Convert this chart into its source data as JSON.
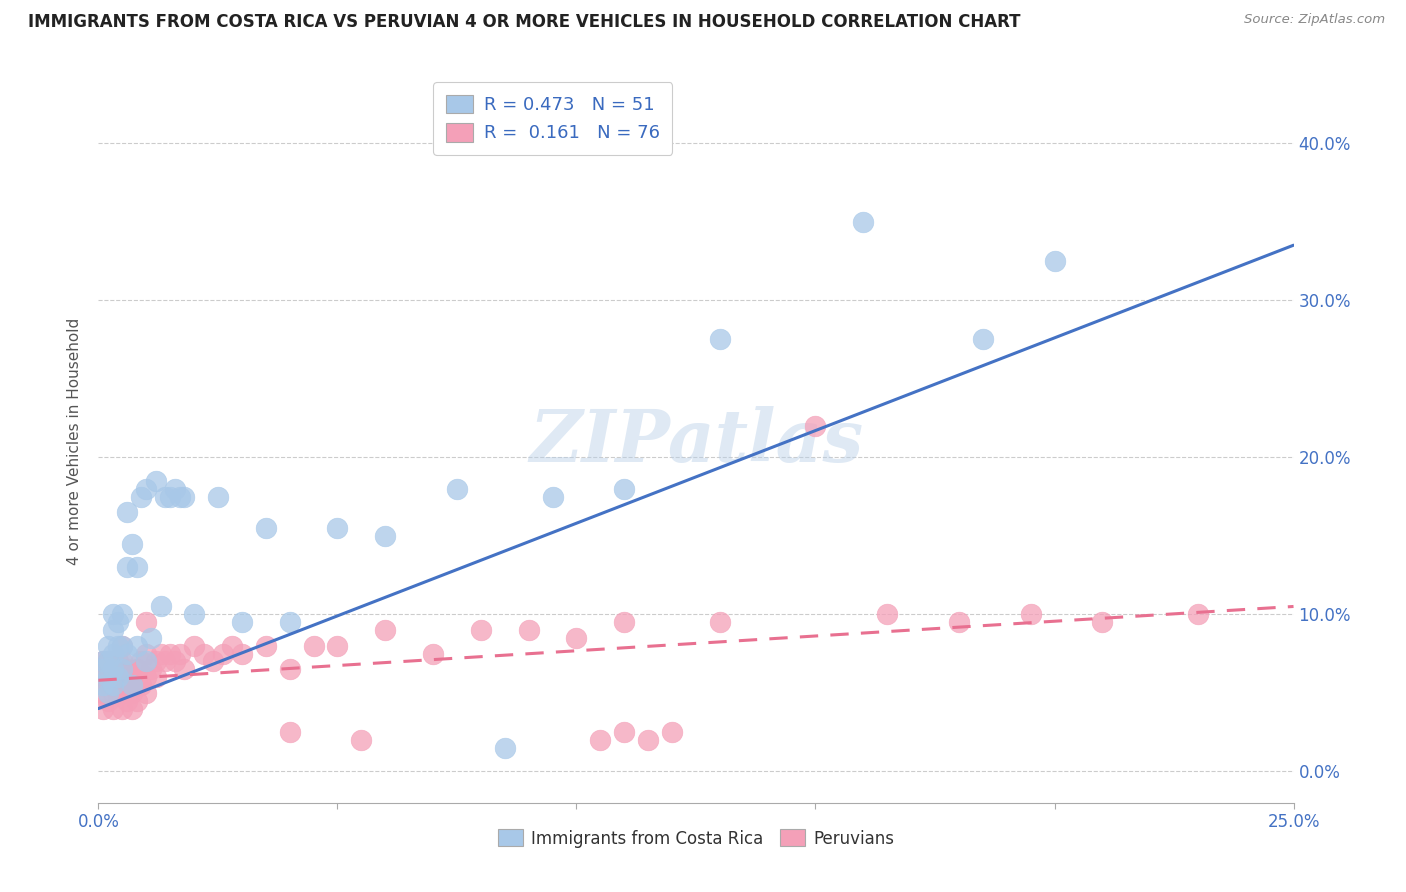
{
  "title": "IMMIGRANTS FROM COSTA RICA VS PERUVIAN 4 OR MORE VEHICLES IN HOUSEHOLD CORRELATION CHART",
  "source": "Source: ZipAtlas.com",
  "ylabel": "4 or more Vehicles in Household",
  "ylabel_right_ticks": [
    "0.0%",
    "10.0%",
    "20.0%",
    "30.0%",
    "40.0%"
  ],
  "ylabel_right_vals": [
    0.0,
    0.1,
    0.2,
    0.3,
    0.4
  ],
  "xlim": [
    0.0,
    0.25
  ],
  "ylim": [
    -0.02,
    0.44
  ],
  "color_blue": "#a8c8e8",
  "color_pink": "#f4a0b8",
  "line_color_blue": "#4472c4",
  "line_color_pink": "#e87090",
  "watermark": "ZIPatlas",
  "cr_R": 0.473,
  "cr_N": 51,
  "peru_R": 0.161,
  "peru_N": 76,
  "cr_line_x0": 0.0,
  "cr_line_y0": 0.04,
  "cr_line_x1": 0.25,
  "cr_line_y1": 0.335,
  "peru_line_x0": 0.0,
  "peru_line_y0": 0.058,
  "peru_line_x1": 0.25,
  "peru_line_y1": 0.105,
  "cr_x": [
    0.001,
    0.001,
    0.001,
    0.002,
    0.002,
    0.002,
    0.002,
    0.003,
    0.003,
    0.003,
    0.003,
    0.003,
    0.004,
    0.004,
    0.004,
    0.005,
    0.005,
    0.005,
    0.006,
    0.006,
    0.006,
    0.007,
    0.007,
    0.008,
    0.008,
    0.009,
    0.01,
    0.01,
    0.011,
    0.012,
    0.013,
    0.014,
    0.015,
    0.016,
    0.017,
    0.018,
    0.02,
    0.025,
    0.03,
    0.035,
    0.04,
    0.05,
    0.06,
    0.075,
    0.085,
    0.095,
    0.11,
    0.13,
    0.16,
    0.185,
    0.2
  ],
  "cr_y": [
    0.055,
    0.065,
    0.07,
    0.05,
    0.06,
    0.07,
    0.08,
    0.055,
    0.065,
    0.075,
    0.09,
    0.1,
    0.06,
    0.08,
    0.095,
    0.065,
    0.08,
    0.1,
    0.075,
    0.13,
    0.165,
    0.055,
    0.145,
    0.08,
    0.13,
    0.175,
    0.07,
    0.18,
    0.085,
    0.185,
    0.105,
    0.175,
    0.175,
    0.18,
    0.175,
    0.175,
    0.1,
    0.175,
    0.095,
    0.155,
    0.095,
    0.155,
    0.15,
    0.18,
    0.015,
    0.175,
    0.18,
    0.275,
    0.35,
    0.275,
    0.325
  ],
  "peru_x": [
    0.001,
    0.001,
    0.001,
    0.001,
    0.002,
    0.002,
    0.002,
    0.002,
    0.003,
    0.003,
    0.003,
    0.003,
    0.003,
    0.004,
    0.004,
    0.004,
    0.004,
    0.005,
    0.005,
    0.005,
    0.005,
    0.006,
    0.006,
    0.006,
    0.007,
    0.007,
    0.007,
    0.008,
    0.008,
    0.008,
    0.009,
    0.009,
    0.01,
    0.01,
    0.01,
    0.011,
    0.012,
    0.013,
    0.014,
    0.015,
    0.016,
    0.017,
    0.018,
    0.02,
    0.022,
    0.024,
    0.026,
    0.028,
    0.03,
    0.035,
    0.04,
    0.045,
    0.05,
    0.06,
    0.07,
    0.08,
    0.09,
    0.1,
    0.11,
    0.13,
    0.15,
    0.165,
    0.18,
    0.195,
    0.21,
    0.23,
    0.005,
    0.008,
    0.01,
    0.012,
    0.04,
    0.055,
    0.105,
    0.11,
    0.115,
    0.12
  ],
  "peru_y": [
    0.06,
    0.07,
    0.05,
    0.04,
    0.055,
    0.065,
    0.045,
    0.07,
    0.06,
    0.05,
    0.065,
    0.04,
    0.07,
    0.055,
    0.065,
    0.05,
    0.07,
    0.06,
    0.05,
    0.07,
    0.04,
    0.065,
    0.055,
    0.045,
    0.06,
    0.05,
    0.04,
    0.065,
    0.055,
    0.045,
    0.07,
    0.055,
    0.06,
    0.075,
    0.05,
    0.065,
    0.07,
    0.075,
    0.07,
    0.075,
    0.07,
    0.075,
    0.065,
    0.08,
    0.075,
    0.07,
    0.075,
    0.08,
    0.075,
    0.08,
    0.065,
    0.08,
    0.08,
    0.09,
    0.075,
    0.09,
    0.09,
    0.085,
    0.095,
    0.095,
    0.22,
    0.1,
    0.095,
    0.1,
    0.095,
    0.1,
    0.08,
    0.065,
    0.095,
    0.06,
    0.025,
    0.02,
    0.02,
    0.025,
    0.02,
    0.025
  ]
}
